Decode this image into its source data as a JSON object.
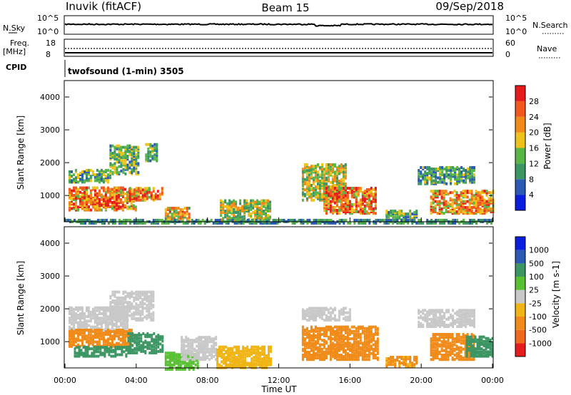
{
  "header": {
    "station": "Inuvik (fitACF)",
    "beam": "Beam 15",
    "date": "09/Sep/2018"
  },
  "top_panels": {
    "nsky_label": "N.Sky",
    "nsearch_label": "N.Search",
    "noise_ticks": [
      "10^5",
      "10^0"
    ],
    "freq_label_1": "Freq.",
    "freq_label_2": "[MHz]",
    "freq_ticks": [
      "18",
      "8"
    ],
    "nave_label": "Nave",
    "nave_ticks": [
      "60",
      "0"
    ],
    "cpid_label": "CPID",
    "cpid_text": "twofsound (1-min) 3505"
  },
  "colors": {
    "power": [
      "#0a1ee0",
      "#2a5ab4",
      "#3c9664",
      "#58b646",
      "#eec21a",
      "#f08a18",
      "#f0581e",
      "#e61c1c"
    ],
    "velocity": [
      "#e61c1c",
      "#f06a1e",
      "#f08a18",
      "#f0b414",
      "#c8c8c8",
      "#58c032",
      "#3c9664",
      "#2a5ab4",
      "#0a1ee0"
    ]
  },
  "chart_data": [
    {
      "type": "heatmap",
      "name": "Power",
      "ylabel": "Slant Range [km]",
      "yticks": [
        "1000",
        "2000",
        "3000",
        "4000"
      ],
      "ylim": [
        200,
        4500
      ],
      "colorbar_label": "Power [dB]",
      "colorbar_ticks": [
        "4",
        "8",
        "12",
        "16",
        "20",
        "24",
        "28"
      ],
      "colorbar_range": [
        0,
        32
      ],
      "scatter_regions": [
        {
          "t": [
            0.2,
            2.5
          ],
          "r": [
            1450,
            1850
          ],
          "v": 12
        },
        {
          "t": [
            0.2,
            4.0
          ],
          "r": [
            600,
            1300
          ],
          "v": 22
        },
        {
          "t": [
            0.8,
            3.0
          ],
          "r": [
            700,
            1100
          ],
          "v": 27
        },
        {
          "t": [
            2.5,
            4.1
          ],
          "r": [
            1700,
            2600
          ],
          "v": 13
        },
        {
          "t": [
            3.6,
            5.5
          ],
          "r": [
            900,
            1300
          ],
          "v": 24
        },
        {
          "t": [
            4.5,
            5.2
          ],
          "r": [
            2100,
            2600
          ],
          "v": 11
        },
        {
          "t": [
            5.6,
            7.0
          ],
          "r": [
            250,
            700
          ],
          "v": 20
        },
        {
          "t": [
            8.7,
            11.5
          ],
          "r": [
            300,
            900
          ],
          "v": 16
        },
        {
          "t": [
            13.3,
            15.7
          ],
          "r": [
            900,
            2000
          ],
          "v": 16
        },
        {
          "t": [
            14.5,
            17.5
          ],
          "r": [
            500,
            1300
          ],
          "v": 24
        },
        {
          "t": [
            18.0,
            19.8
          ],
          "r": [
            300,
            600
          ],
          "v": 13
        },
        {
          "t": [
            19.8,
            23.0
          ],
          "r": [
            1400,
            1900
          ],
          "v": 11
        },
        {
          "t": [
            20.5,
            24.0
          ],
          "r": [
            500,
            1200
          ],
          "v": 22
        },
        {
          "t": [
            0.0,
            24.0
          ],
          "r": [
            200,
            300
          ],
          "v": 10
        }
      ],
      "xticks": [
        "00:00",
        "04:00",
        "08:00",
        "12:00",
        "16:00",
        "20:00",
        "00:00"
      ]
    },
    {
      "type": "heatmap",
      "name": "Velocity",
      "ylabel": "Slant Range [km]",
      "yticks": [
        "1000",
        "2000",
        "3000",
        "4000"
      ],
      "ylim": [
        200,
        4500
      ],
      "colorbar_label": "Velocity [m s-1]",
      "colorbar_ticks": [
        "1000",
        "500",
        "100",
        "25",
        "-25",
        "-100",
        "-500",
        "-1000"
      ],
      "scatter_regions": [
        {
          "t": [
            0.2,
            3.5
          ],
          "r": [
            1400,
            2100
          ],
          "v": 0
        },
        {
          "t": [
            0.2,
            3.8
          ],
          "r": [
            900,
            1400
          ],
          "v": -200
        },
        {
          "t": [
            0.5,
            3.5
          ],
          "r": [
            600,
            900
          ],
          "v": 150
        },
        {
          "t": [
            3.5,
            5.5
          ],
          "r": [
            700,
            1300
          ],
          "v": 200
        },
        {
          "t": [
            2.5,
            5.0
          ],
          "r": [
            1700,
            2600
          ],
          "v": 0
        },
        {
          "t": [
            5.6,
            7.5
          ],
          "r": [
            200,
            700
          ],
          "v": 50
        },
        {
          "t": [
            6.5,
            8.5
          ],
          "r": [
            500,
            1200
          ],
          "v": 0
        },
        {
          "t": [
            8.5,
            11.5
          ],
          "r": [
            250,
            900
          ],
          "v": -60
        },
        {
          "t": [
            13.3,
            16.0
          ],
          "r": [
            1700,
            2100
          ],
          "v": 0
        },
        {
          "t": [
            13.3,
            17.5
          ],
          "r": [
            500,
            1500
          ],
          "v": -150
        },
        {
          "t": [
            18.0,
            19.8
          ],
          "r": [
            300,
            600
          ],
          "v": -120
        },
        {
          "t": [
            19.8,
            23.0
          ],
          "r": [
            1500,
            2000
          ],
          "v": 0
        },
        {
          "t": [
            20.5,
            23.0
          ],
          "r": [
            500,
            1300
          ],
          "v": -200
        },
        {
          "t": [
            22.5,
            24.0
          ],
          "r": [
            600,
            1200
          ],
          "v": 150
        }
      ],
      "xticks": [
        "00:00",
        "04:00",
        "08:00",
        "12:00",
        "16:00",
        "20:00",
        "00:00"
      ],
      "xlabel": "Time UT"
    }
  ]
}
